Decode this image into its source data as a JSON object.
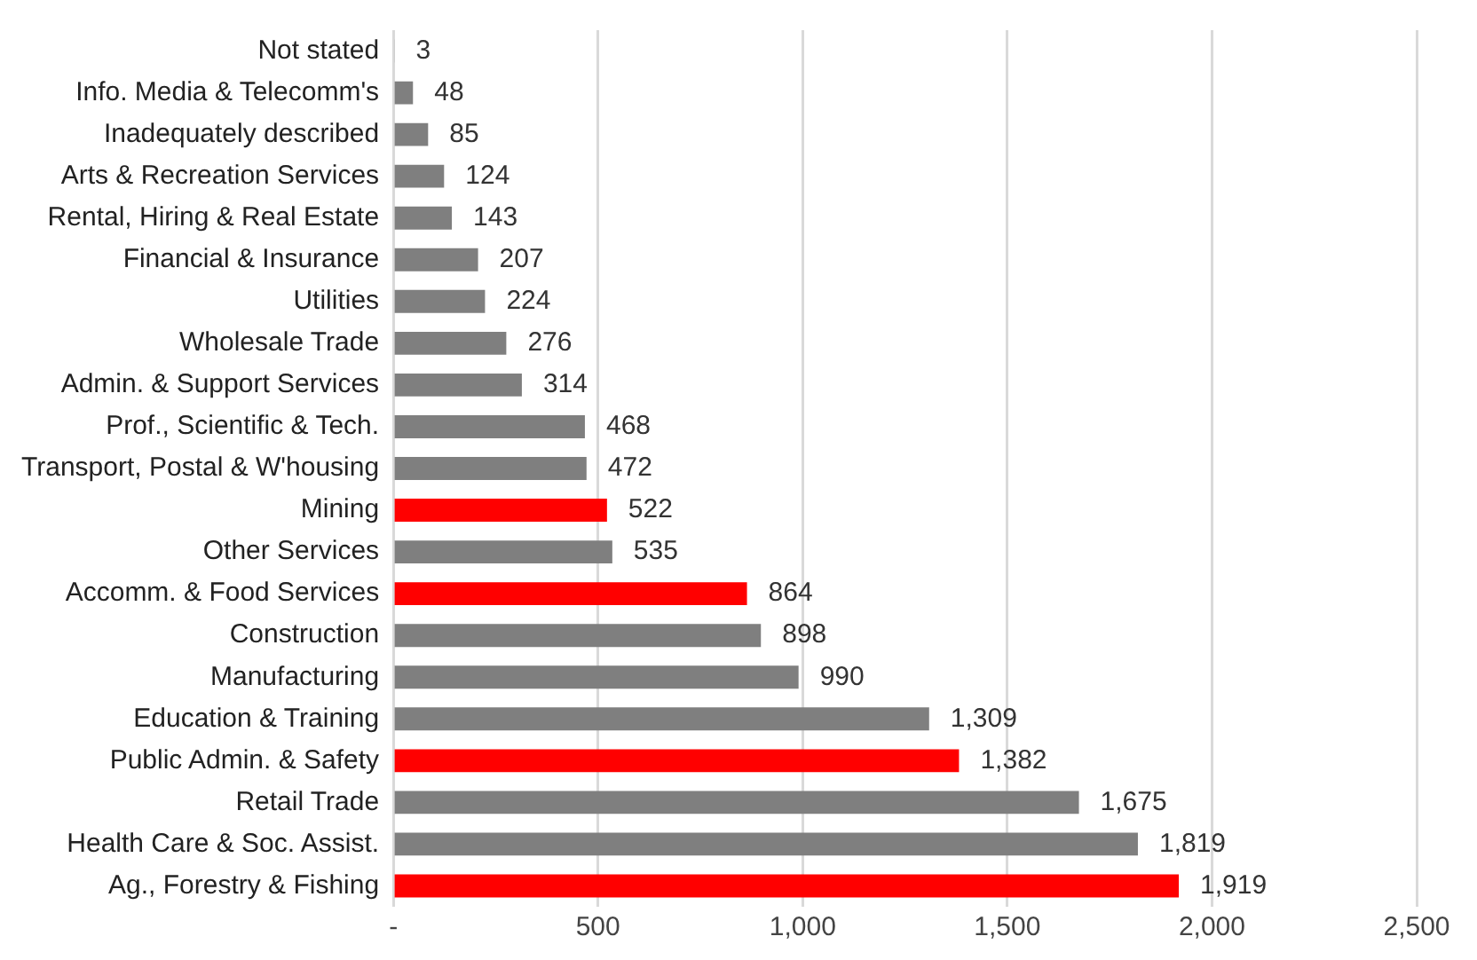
{
  "chart_data": {
    "type": "bar",
    "orientation": "horizontal",
    "categories": [
      "Not stated",
      "Info. Media & Telecomm's",
      "Inadequately described",
      "Arts & Recreation Services",
      "Rental, Hiring & Real Estate",
      "Financial & Insurance",
      "Utilities",
      "Wholesale Trade",
      "Admin. & Support Services",
      "Prof., Scientific & Tech.",
      "Transport, Postal & W'housing",
      "Mining",
      "Other Services",
      "Accomm. & Food Services",
      "Construction",
      "Manufacturing",
      "Education & Training",
      "Public Admin. & Safety",
      "Retail Trade",
      "Health Care & Soc. Assist.",
      "Ag., Forestry & Fishing"
    ],
    "values": [
      3,
      48,
      85,
      124,
      143,
      207,
      224,
      276,
      314,
      468,
      472,
      522,
      535,
      864,
      898,
      990,
      1309,
      1382,
      1675,
      1819,
      1919
    ],
    "value_labels": [
      "3",
      "48",
      "85",
      "124",
      "143",
      "207",
      "224",
      "276",
      "314",
      "468",
      "472",
      "522",
      "535",
      "864",
      "898",
      "990",
      "1,309",
      "1,382",
      "1,675",
      "1,819",
      "1,919"
    ],
    "colors": [
      "#7f7f7f",
      "#7f7f7f",
      "#7f7f7f",
      "#7f7f7f",
      "#7f7f7f",
      "#7f7f7f",
      "#7f7f7f",
      "#7f7f7f",
      "#7f7f7f",
      "#7f7f7f",
      "#7f7f7f",
      "#ff0000",
      "#7f7f7f",
      "#ff0000",
      "#7f7f7f",
      "#7f7f7f",
      "#7f7f7f",
      "#ff0000",
      "#7f7f7f",
      "#7f7f7f",
      "#ff0000"
    ],
    "xlim": [
      0,
      2500
    ],
    "xticks": [
      {
        "value": 0,
        "label": "-"
      },
      {
        "value": 500,
        "label": "500"
      },
      {
        "value": 1000,
        "label": "1,000"
      },
      {
        "value": 1500,
        "label": "1,500"
      },
      {
        "value": 2000,
        "label": "2,000"
      },
      {
        "value": 2500,
        "label": "2,500"
      }
    ],
    "grid": "x",
    "legend": false
  }
}
